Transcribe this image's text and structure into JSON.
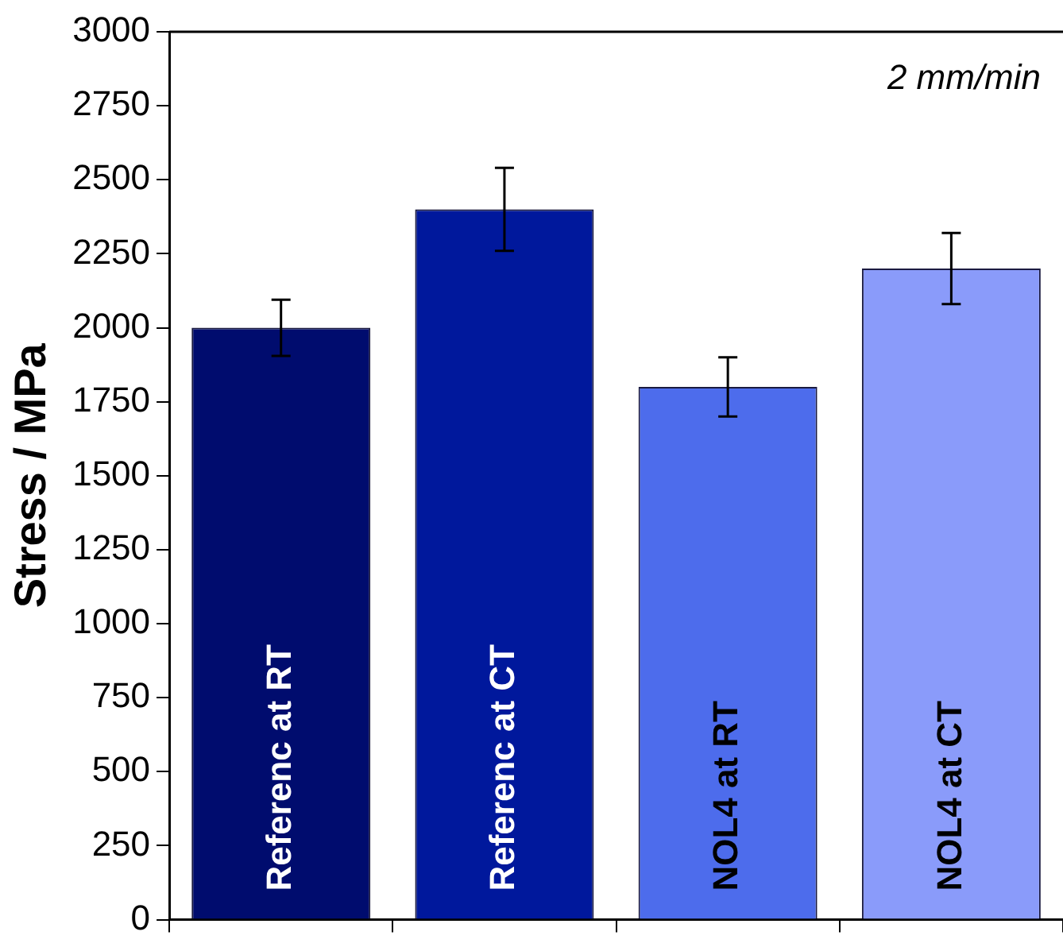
{
  "chart_data": {
    "type": "bar",
    "ylabel": "Stress / MPa",
    "annotations": [
      "2 mm/min"
    ],
    "categories": [
      "Referenc at RT",
      "Referenc at CT",
      "NOL4 at RT",
      "NOL4 at CT"
    ],
    "values": [
      2000,
      2400,
      1800,
      2200
    ],
    "errors": [
      95,
      140,
      100,
      120
    ],
    "colors": [
      "#000c6e",
      "#00189c",
      "#4d6cec",
      "#8a9bfa"
    ],
    "ylim": [
      0,
      3000
    ],
    "yticks": [
      0,
      250,
      500,
      750,
      1000,
      1250,
      1500,
      1750,
      2000,
      2250,
      2500,
      2750,
      3000
    ],
    "grid": false,
    "legend": false
  }
}
